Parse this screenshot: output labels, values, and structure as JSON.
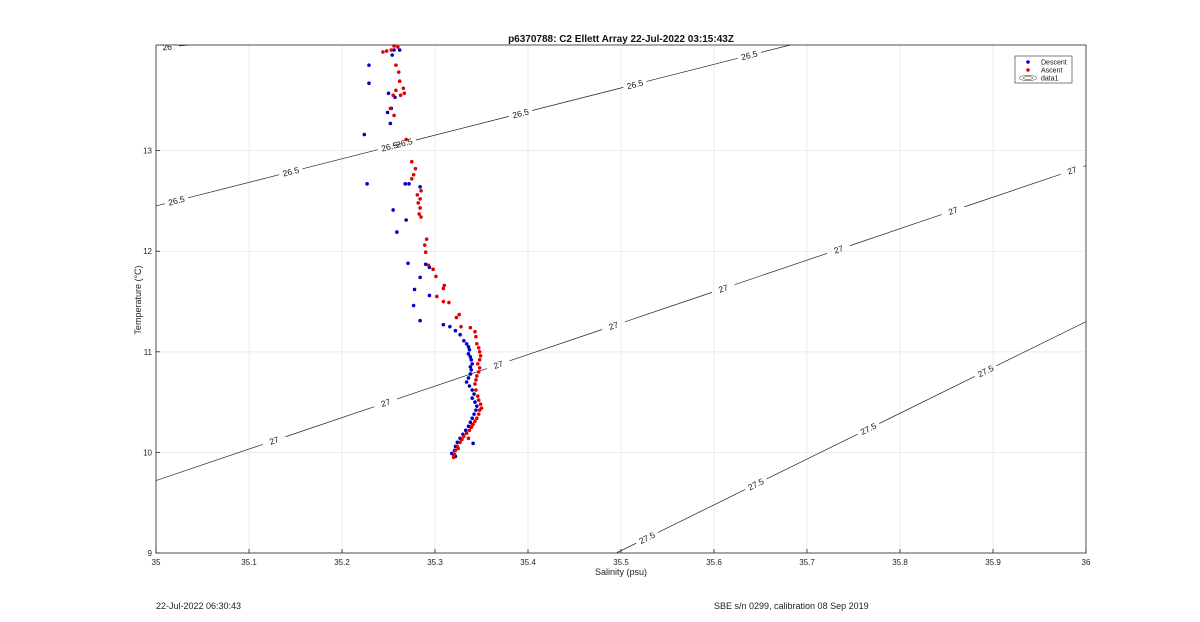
{
  "chart_data": {
    "type": "scatter",
    "title": "p6370788: C2 Ellett Array 22-Jul-2022 03:15:43Z",
    "xlabel": "Salinity (psu)",
    "ylabel": "Temperature (°C)",
    "xlim": [
      35,
      36
    ],
    "ylim": [
      9,
      14.05
    ],
    "xticks": [
      35,
      35.1,
      35.2,
      35.3,
      35.4,
      35.5,
      35.6,
      35.7,
      35.8,
      35.9,
      36
    ],
    "xtick_labels": [
      "35",
      "35.1",
      "35.2",
      "35.3",
      "35.4",
      "35.5",
      "35.6",
      "35.7",
      "35.8",
      "35.9",
      "36"
    ],
    "yticks": [
      9,
      10,
      11,
      12,
      13
    ],
    "ytick_labels": [
      "9",
      "10",
      "11",
      "12",
      "13"
    ],
    "grid": true,
    "legend": {
      "placement": "top-right",
      "entries": [
        {
          "label": "Descent",
          "symbol": "dot",
          "color": "#0000c8"
        },
        {
          "label": "Ascent",
          "symbol": "dot",
          "color": "#e00000"
        },
        {
          "label": "data1",
          "symbol": "contour"
        }
      ]
    },
    "contours": {
      "color": "#222222",
      "lines": [
        {
          "label": "26",
          "points": [
            [
              35.0,
              14.02
            ],
            [
              35.035,
              14.05
            ]
          ],
          "labels_at": [
            [
              35.012,
              14.0
            ]
          ]
        },
        {
          "label": "26.5",
          "points": [
            [
              35.0,
              12.45
            ],
            [
              35.682,
              14.05
            ]
          ],
          "labels_at": [
            [
              35.022,
              12.55
            ],
            [
              35.145,
              13.02
            ],
            [
              35.251,
              13.38
            ],
            [
              35.392,
              13.98
            ],
            [
              35.515,
              14.45
            ],
            [
              35.638,
              14.82
            ],
            [
              35.267,
              13.47
            ]
          ]
        },
        {
          "label": "27",
          "points": [
            [
              35.0,
              9.72
            ],
            [
              36.0,
              12.85
            ]
          ],
          "labels_at": [
            [
              35.127,
              10.3
            ],
            [
              35.247,
              10.84
            ],
            [
              35.368,
              11.37
            ],
            [
              35.492,
              11.85
            ],
            [
              35.61,
              12.34
            ],
            [
              35.734,
              12.82
            ],
            [
              35.857,
              13.3
            ],
            [
              35.985,
              13.78
            ]
          ]
        },
        {
          "label": "27.5",
          "points": [
            [
              35.495,
              9.0
            ],
            [
              36.0,
              11.3
            ]
          ],
          "labels_at": [
            [
              35.528,
              9.38
            ],
            [
              35.645,
              9.93
            ],
            [
              35.766,
              10.47
            ],
            [
              35.892,
              10.98
            ]
          ]
        }
      ],
      "label_display": {
        "26": [
          "26"
        ],
        "26.5": [
          "26.5",
          "26.5",
          "26.5",
          "26.5",
          "26.5",
          "26.5",
          "26.5"
        ],
        "27": [
          "27",
          "27",
          "27",
          "27",
          "27",
          "27",
          "27",
          "27"
        ],
        "27.5": [
          "27.5",
          "27.5",
          "27.5",
          "27.5"
        ]
      }
    },
    "series": [
      {
        "name": "Descent",
        "color": "#0000c8",
        "points": [
          [
            35.256,
            14.0
          ],
          [
            35.262,
            14.0
          ],
          [
            35.254,
            13.95
          ],
          [
            35.229,
            13.85
          ],
          [
            35.229,
            13.67
          ],
          [
            35.25,
            13.57
          ],
          [
            35.257,
            13.53
          ],
          [
            35.253,
            13.42
          ],
          [
            35.249,
            13.38
          ],
          [
            35.252,
            13.27
          ],
          [
            35.224,
            13.16
          ],
          [
            35.227,
            12.67
          ],
          [
            35.268,
            12.67
          ],
          [
            35.272,
            12.67
          ],
          [
            35.284,
            12.64
          ],
          [
            35.255,
            12.41
          ],
          [
            35.269,
            12.31
          ],
          [
            35.259,
            12.19
          ],
          [
            35.271,
            11.88
          ],
          [
            35.29,
            11.87
          ],
          [
            35.294,
            11.84
          ],
          [
            35.284,
            11.74
          ],
          [
            35.294,
            11.56
          ],
          [
            35.278,
            11.62
          ],
          [
            35.277,
            11.46
          ],
          [
            35.284,
            11.31
          ],
          [
            35.309,
            11.27
          ],
          [
            35.316,
            11.25
          ],
          [
            35.322,
            11.21
          ],
          [
            35.327,
            11.17
          ],
          [
            35.331,
            11.11
          ],
          [
            35.334,
            11.08
          ],
          [
            35.336,
            11.05
          ],
          [
            35.337,
            11.02
          ],
          [
            35.336,
            10.98
          ],
          [
            35.338,
            10.95
          ],
          [
            35.339,
            10.92
          ],
          [
            35.34,
            10.88
          ],
          [
            35.338,
            10.85
          ],
          [
            35.339,
            10.82
          ],
          [
            35.338,
            10.78
          ],
          [
            35.336,
            10.74
          ],
          [
            35.334,
            10.7
          ],
          [
            35.337,
            10.66
          ],
          [
            35.34,
            10.62
          ],
          [
            35.342,
            10.58
          ],
          [
            35.34,
            10.54
          ],
          [
            35.343,
            10.5
          ],
          [
            35.345,
            10.46
          ],
          [
            35.344,
            10.42
          ],
          [
            35.342,
            10.38
          ],
          [
            35.34,
            10.34
          ],
          [
            35.338,
            10.3
          ],
          [
            35.336,
            10.26
          ],
          [
            35.333,
            10.22
          ],
          [
            35.33,
            10.18
          ],
          [
            35.327,
            10.14
          ],
          [
            35.324,
            10.1
          ],
          [
            35.322,
            10.06
          ],
          [
            35.321,
            10.02
          ],
          [
            35.32,
            9.98
          ],
          [
            35.322,
            9.96
          ],
          [
            35.318,
            9.99
          ],
          [
            35.341,
            10.09
          ]
        ]
      },
      {
        "name": "Ascent",
        "color": "#e00000",
        "points": [
          [
            35.256,
            14.04
          ],
          [
            35.26,
            14.03
          ],
          [
            35.253,
            14.0
          ],
          [
            35.248,
            13.99
          ],
          [
            35.244,
            13.98
          ],
          [
            35.258,
            13.85
          ],
          [
            35.261,
            13.78
          ],
          [
            35.262,
            13.69
          ],
          [
            35.266,
            13.62
          ],
          [
            35.258,
            13.6
          ],
          [
            35.255,
            13.55
          ],
          [
            35.263,
            13.55
          ],
          [
            35.267,
            13.57
          ],
          [
            35.252,
            13.42
          ],
          [
            35.256,
            13.35
          ],
          [
            35.269,
            13.11
          ],
          [
            35.275,
            12.89
          ],
          [
            35.279,
            12.82
          ],
          [
            35.277,
            12.76
          ],
          [
            35.275,
            12.72
          ],
          [
            35.285,
            12.6
          ],
          [
            35.281,
            12.56
          ],
          [
            35.284,
            12.52
          ],
          [
            35.282,
            12.48
          ],
          [
            35.284,
            12.43
          ],
          [
            35.283,
            12.37
          ],
          [
            35.285,
            12.34
          ],
          [
            35.291,
            12.12
          ],
          [
            35.289,
            12.06
          ],
          [
            35.29,
            11.99
          ],
          [
            35.293,
            11.86
          ],
          [
            35.298,
            11.82
          ],
          [
            35.301,
            11.75
          ],
          [
            35.31,
            11.66
          ],
          [
            35.309,
            11.63
          ],
          [
            35.302,
            11.55
          ],
          [
            35.309,
            11.5
          ],
          [
            35.315,
            11.49
          ],
          [
            35.326,
            11.37
          ],
          [
            35.323,
            11.34
          ],
          [
            35.328,
            11.25
          ],
          [
            35.338,
            11.24
          ],
          [
            35.343,
            11.2
          ],
          [
            35.344,
            11.15
          ],
          [
            35.345,
            11.08
          ],
          [
            35.347,
            11.04
          ],
          [
            35.348,
            11.0
          ],
          [
            35.349,
            10.96
          ],
          [
            35.348,
            10.92
          ],
          [
            35.346,
            10.88
          ],
          [
            35.348,
            10.84
          ],
          [
            35.347,
            10.8
          ],
          [
            35.345,
            10.76
          ],
          [
            35.344,
            10.72
          ],
          [
            35.343,
            10.68
          ],
          [
            35.344,
            10.62
          ],
          [
            35.346,
            10.56
          ],
          [
            35.347,
            10.52
          ],
          [
            35.349,
            10.48
          ],
          [
            35.35,
            10.44
          ],
          [
            35.348,
            10.42
          ],
          [
            35.347,
            10.38
          ],
          [
            35.345,
            10.34
          ],
          [
            35.343,
            10.31
          ],
          [
            35.341,
            10.28
          ],
          [
            35.339,
            10.25
          ],
          [
            35.337,
            10.22
          ],
          [
            35.334,
            10.19
          ],
          [
            35.331,
            10.16
          ],
          [
            35.329,
            10.13
          ],
          [
            35.327,
            10.1
          ],
          [
            35.324,
            10.06
          ],
          [
            35.322,
            10.02
          ],
          [
            35.321,
            9.98
          ],
          [
            35.32,
            9.95
          ],
          [
            35.325,
            10.04
          ],
          [
            35.336,
            10.14
          ],
          [
            35.34,
            10.27
          ]
        ]
      }
    ]
  },
  "footer": {
    "left": "22-Jul-2022 06:30:43",
    "right": "SBE s/n 0299, calibration 08 Sep 2019"
  }
}
